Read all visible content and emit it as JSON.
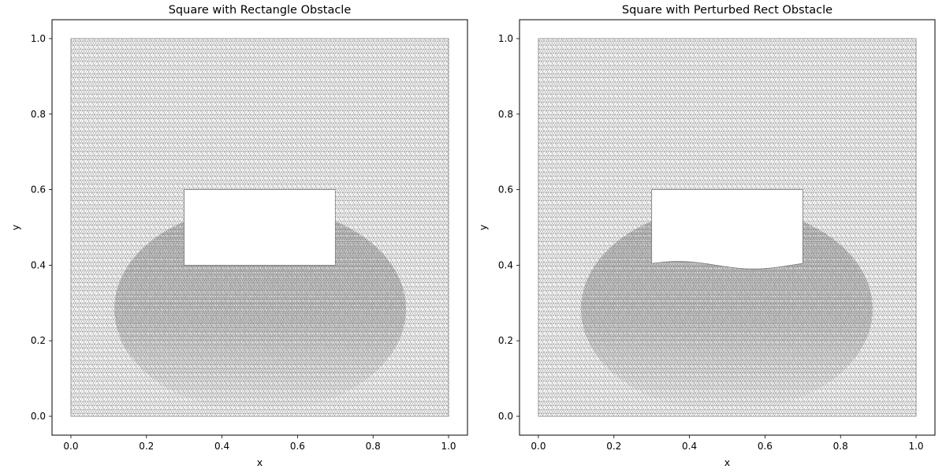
{
  "chart_data": [
    {
      "type": "mesh",
      "title": "Square with Rectangle Obstacle",
      "xlabel": "x",
      "ylabel": "y",
      "xlim": [
        -0.05,
        1.05
      ],
      "ylim": [
        -0.05,
        1.05
      ],
      "xticks": [
        0.0,
        0.2,
        0.4,
        0.6,
        0.8,
        1.0
      ],
      "yticks": [
        0.0,
        0.2,
        0.4,
        0.6,
        0.8,
        1.0
      ],
      "xtick_labels": [
        "0.0",
        "0.2",
        "0.4",
        "0.6",
        "0.8",
        "1.0"
      ],
      "ytick_labels": [
        "0.0",
        "0.2",
        "0.4",
        "0.6",
        "0.8",
        "1.0"
      ],
      "domain": {
        "xmin": 0.0,
        "xmax": 1.0,
        "ymin": 0.0,
        "ymax": 1.0
      },
      "obstacle": {
        "xmin": 0.3,
        "xmax": 0.7,
        "ymin": 0.4,
        "ymax": 0.6,
        "bottom_perturbation": 0.0
      },
      "mesh_color": "#808080",
      "grid": false
    },
    {
      "type": "mesh",
      "title": "Square with Perturbed Rect Obstacle",
      "xlabel": "x",
      "ylabel": "y",
      "xlim": [
        -0.05,
        1.05
      ],
      "ylim": [
        -0.05,
        1.05
      ],
      "xticks": [
        0.0,
        0.2,
        0.4,
        0.6,
        0.8,
        1.0
      ],
      "yticks": [
        0.0,
        0.2,
        0.4,
        0.6,
        0.8,
        1.0
      ],
      "xtick_labels": [
        "0.0",
        "0.2",
        "0.4",
        "0.6",
        "0.8",
        "1.0"
      ],
      "ytick_labels": [
        "0.0",
        "0.2",
        "0.4",
        "0.6",
        "0.8",
        "1.0"
      ],
      "domain": {
        "xmin": 0.0,
        "xmax": 1.0,
        "ymin": 0.0,
        "ymax": 1.0
      },
      "obstacle": {
        "xmin": 0.3,
        "xmax": 0.7,
        "ymin": 0.4,
        "ymax": 0.6,
        "bottom_perturbation": 0.01
      },
      "mesh_color": "#808080",
      "grid": false
    }
  ]
}
